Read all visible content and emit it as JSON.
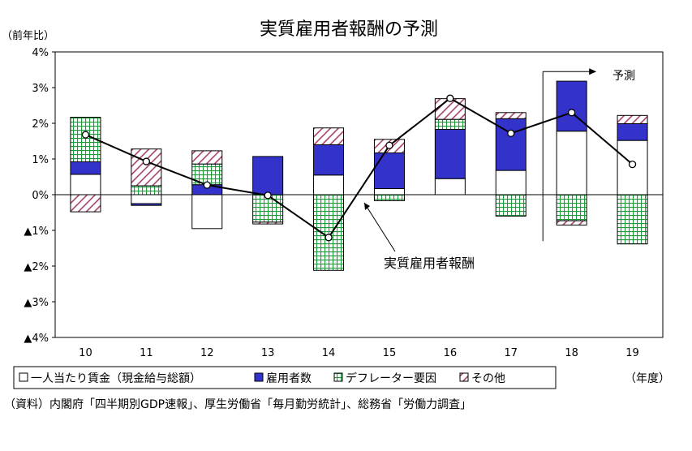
{
  "chart_data": {
    "type": "bar",
    "stacked": true,
    "title": "実質雇用者報酬の予測",
    "ylabel": "（前年比）",
    "xunit": "（年度）",
    "categories": [
      "10",
      "11",
      "12",
      "13",
      "14",
      "15",
      "16",
      "17",
      "18",
      "19"
    ],
    "ylim": [
      -4,
      4
    ],
    "y_tick_labels": [
      "4%",
      "3%",
      "2%",
      "1%",
      "0%",
      "▲1%",
      "▲2%",
      "▲3%",
      "▲4%"
    ],
    "series": [
      {
        "name": "一人当たり賃金（現金給与総額）",
        "fill": "#ffffff",
        "values": [
          0.57,
          -0.25,
          -0.95,
          0.0,
          0.55,
          0.17,
          0.45,
          0.68,
          1.78,
          1.52
        ]
      },
      {
        "name": "雇用者数",
        "fill": "#3333cc",
        "values": [
          0.35,
          -0.05,
          0.28,
          1.07,
          0.85,
          1.0,
          1.38,
          1.45,
          1.4,
          0.47
        ]
      },
      {
        "name": "デフレーター要因",
        "fill": "#1f9a3a",
        "values": [
          1.25,
          0.25,
          0.58,
          -0.77,
          -2.12,
          -0.17,
          0.28,
          -0.6,
          -0.73,
          -1.38
        ]
      },
      {
        "name": "その他",
        "fill": "#a6446e",
        "values": [
          -0.48,
          1.03,
          0.37,
          -0.05,
          0.47,
          0.38,
          0.58,
          0.17,
          -0.12,
          0.23
        ]
      }
    ],
    "line": {
      "name": "実質雇用者報酬",
      "values": [
        1.68,
        0.93,
        0.27,
        -0.02,
        -1.2,
        1.38,
        2.7,
        1.72,
        2.3,
        0.85
      ]
    },
    "annotations": {
      "line_callout": "実質雇用者報酬",
      "forecast": "予測"
    },
    "legend_position": "bottom",
    "source": "（資料）内閣府「四半期別GDP速報」、厚生労働省「毎月勤労統計」、総務省「労働力調査」"
  }
}
